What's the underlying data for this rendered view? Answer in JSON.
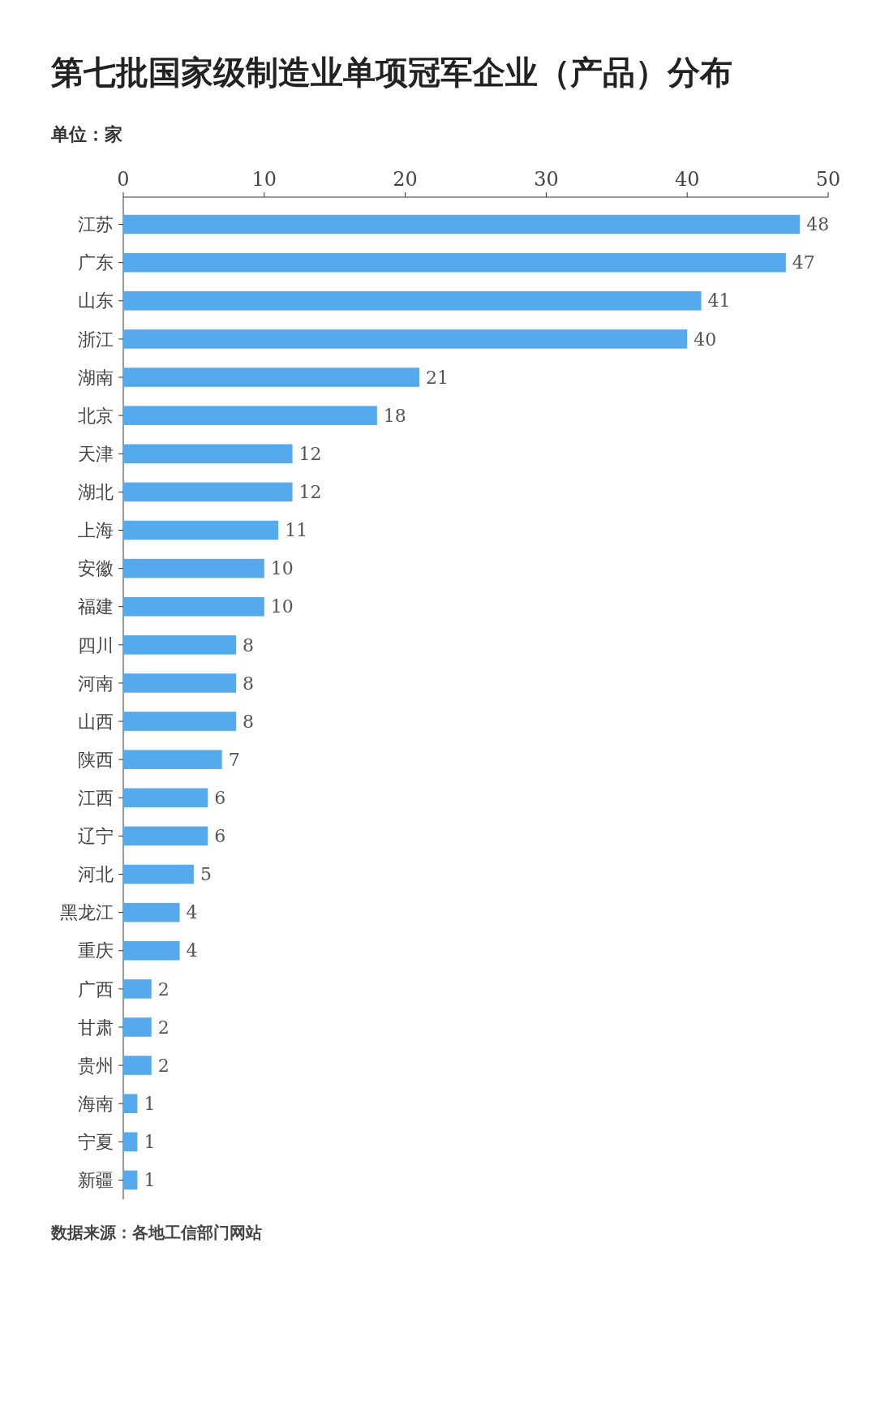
{
  "chart_data": {
    "type": "bar",
    "orientation": "horizontal",
    "title": "第七批国家级制造业单项冠军企业（产品）分布",
    "subtitle": "单位：家",
    "categories": [
      "江苏",
      "广东",
      "山东",
      "浙江",
      "湖南",
      "北京",
      "天津",
      "湖北",
      "上海",
      "安徽",
      "福建",
      "四川",
      "河南",
      "山西",
      "陕西",
      "江西",
      "辽宁",
      "河北",
      "黑龙江",
      "重庆",
      "广西",
      "甘肃",
      "贵州",
      "海南",
      "宁夏",
      "新疆"
    ],
    "values": [
      48,
      47,
      41,
      40,
      21,
      18,
      12,
      12,
      11,
      10,
      10,
      8,
      8,
      8,
      7,
      6,
      6,
      5,
      4,
      4,
      2,
      2,
      2,
      1,
      1,
      1
    ],
    "color": "#55aaee",
    "xlim": [
      0,
      50
    ],
    "xticks": [
      0,
      10,
      20,
      30,
      40,
      50
    ],
    "data_labels": true,
    "grid": false,
    "annotations": [
      "数据来源：各地工信部门网站"
    ]
  }
}
